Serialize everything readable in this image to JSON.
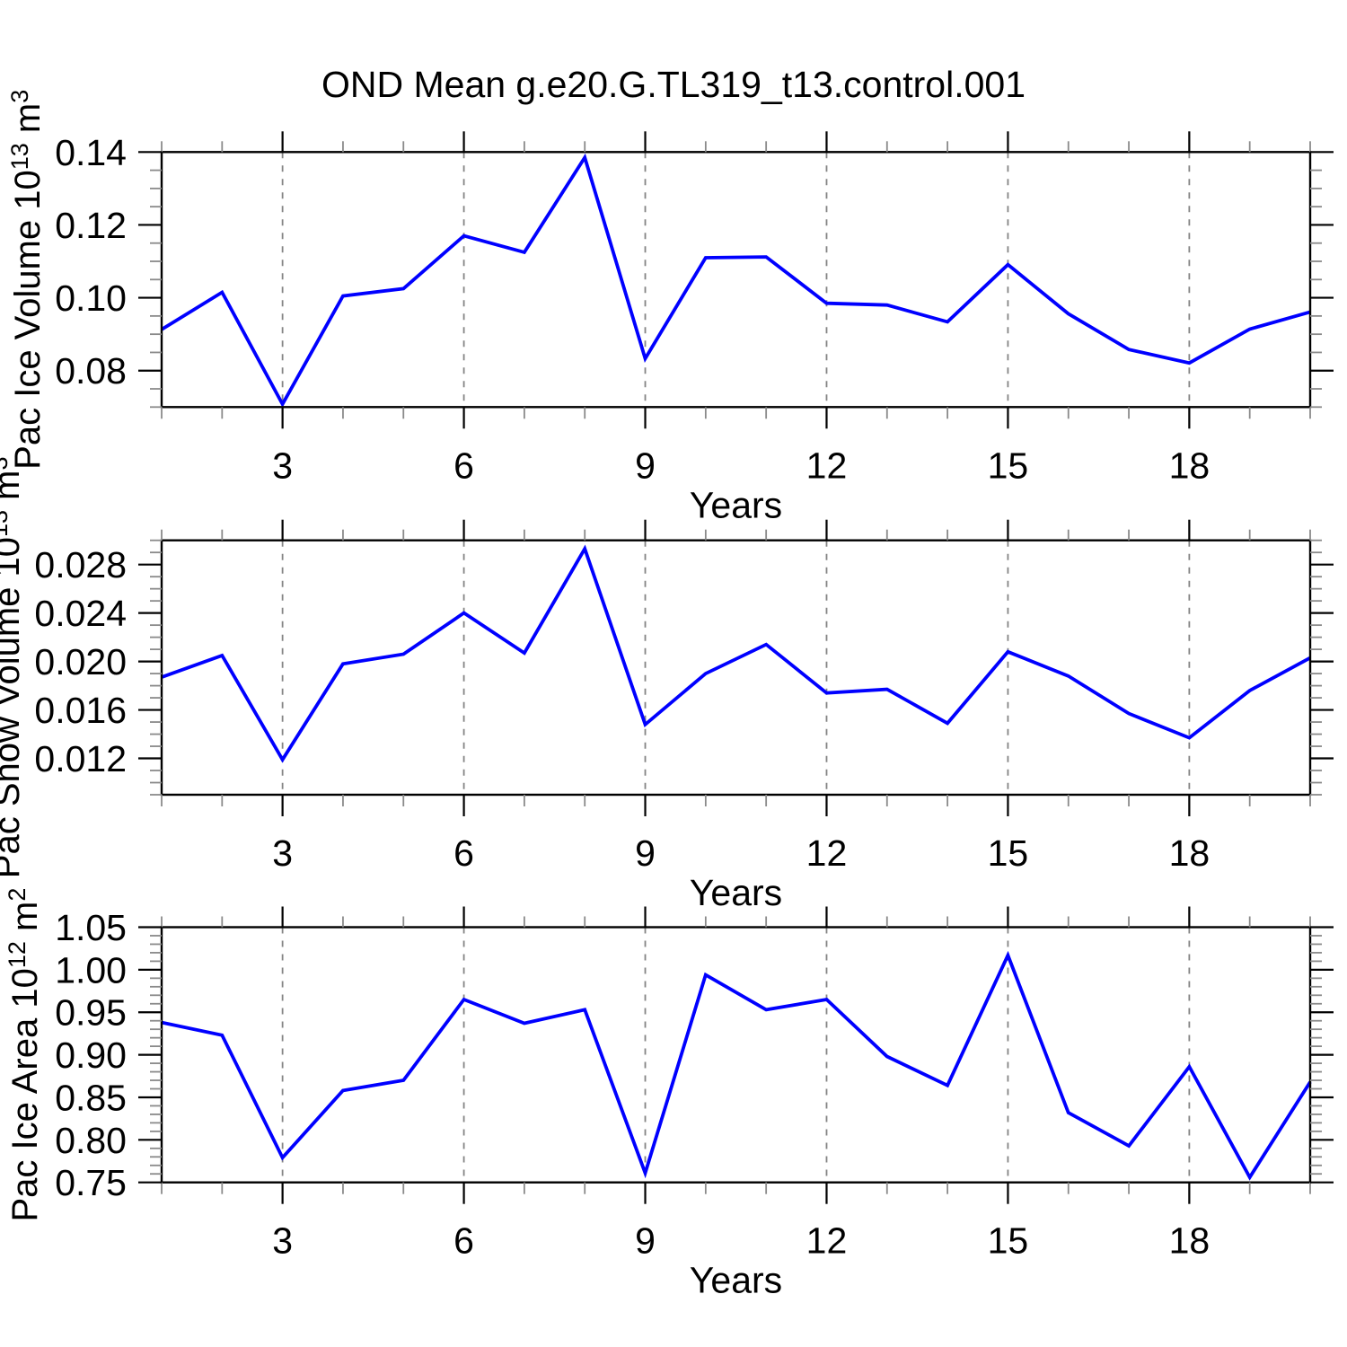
{
  "title": "OND Mean g.e20.G.TL319_t13.control.001",
  "style": {
    "line_color": "#0000ff",
    "frame_color": "#000000",
    "major_tick_color": "#000000",
    "minor_tick_color": "#8a8a8a",
    "grid_color": "#848484",
    "background": "#ffffff"
  },
  "chart_data": [
    {
      "id": "pac-ice-volume",
      "type": "line",
      "ylabel": "Pac Ice Volume 10^13 m^3",
      "ylabel_parts": [
        {
          "t": "Pac Ice Volume 10",
          "sup": false
        },
        {
          "t": "13",
          "sup": true
        },
        {
          "t": " m",
          "sup": false
        },
        {
          "t": "3",
          "sup": true
        }
      ],
      "xlabel": "Years",
      "xlim": [
        1,
        20
      ],
      "xticks": [
        3,
        6,
        9,
        12,
        15,
        18
      ],
      "xtick_labels": [
        "3",
        "6",
        "9",
        "12",
        "15",
        "18"
      ],
      "x_minor_step": 1,
      "ylim": [
        0.07,
        0.14
      ],
      "ytick_values": [
        0.08,
        0.1,
        0.12,
        0.14
      ],
      "ytick_labels": [
        "0.08",
        "0.10",
        "0.12",
        "0.14"
      ],
      "y_minor_step": 0.005,
      "grid_vertical_dashed": true,
      "x": [
        1,
        2,
        3,
        4,
        5,
        6,
        7,
        8,
        9,
        10,
        11,
        12,
        13,
        14,
        15,
        16,
        17,
        18,
        19,
        20
      ],
      "values": [
        0.0913,
        0.1015,
        0.0708,
        0.1005,
        0.1025,
        0.117,
        0.1125,
        0.1385,
        0.0833,
        0.111,
        0.1112,
        0.0985,
        0.098,
        0.0934,
        0.1091,
        0.0956,
        0.0858,
        0.0821,
        0.0914,
        0.0961
      ]
    },
    {
      "id": "pac-snow-volume",
      "type": "line",
      "ylabel": "Pac Snow Volume 10^13 m^3",
      "ylabel_parts": [
        {
          "t": "Pac Snow Volume 10",
          "sup": false
        },
        {
          "t": "13",
          "sup": true
        },
        {
          "t": " m",
          "sup": false
        },
        {
          "t": "3",
          "sup": true
        }
      ],
      "xlabel": "Years",
      "xlim": [
        1,
        20
      ],
      "xticks": [
        3,
        6,
        9,
        12,
        15,
        18
      ],
      "xtick_labels": [
        "3",
        "6",
        "9",
        "12",
        "15",
        "18"
      ],
      "x_minor_step": 1,
      "ylim": [
        0.009,
        0.03
      ],
      "ytick_values": [
        0.012,
        0.016,
        0.02,
        0.024,
        0.028
      ],
      "ytick_labels": [
        "0.012",
        "0.016",
        "0.020",
        "0.024",
        "0.028"
      ],
      "y_minor_step": 0.001,
      "grid_vertical_dashed": true,
      "x": [
        1,
        2,
        3,
        4,
        5,
        6,
        7,
        8,
        9,
        10,
        11,
        12,
        13,
        14,
        15,
        16,
        17,
        18,
        19,
        20
      ],
      "values": [
        0.0187,
        0.0205,
        0.0119,
        0.0198,
        0.0206,
        0.024,
        0.0207,
        0.0293,
        0.0148,
        0.019,
        0.0214,
        0.0174,
        0.0177,
        0.0149,
        0.0208,
        0.0188,
        0.0157,
        0.0137,
        0.0176,
        0.0203
      ]
    },
    {
      "id": "pac-ice-area",
      "type": "line",
      "ylabel": "Pac Ice Area 10^12 m^2",
      "ylabel_parts": [
        {
          "t": "Pac Ice Area 10",
          "sup": false
        },
        {
          "t": "12",
          "sup": true
        },
        {
          "t": " m",
          "sup": false
        },
        {
          "t": "2",
          "sup": true
        }
      ],
      "xlabel": "Years",
      "xlim": [
        1,
        20
      ],
      "xticks": [
        3,
        6,
        9,
        12,
        15,
        18
      ],
      "xtick_labels": [
        "3",
        "6",
        "9",
        "12",
        "15",
        "18"
      ],
      "x_minor_step": 1,
      "ylim": [
        0.75,
        1.05
      ],
      "ytick_values": [
        0.75,
        0.8,
        0.85,
        0.9,
        0.95,
        1.0,
        1.05
      ],
      "ytick_labels": [
        "0.75",
        "0.80",
        "0.85",
        "0.90",
        "0.95",
        "1.00",
        "1.05"
      ],
      "y_minor_step": 0.01,
      "grid_vertical_dashed": true,
      "x": [
        1,
        2,
        3,
        4,
        5,
        6,
        7,
        8,
        9,
        10,
        11,
        12,
        13,
        14,
        15,
        16,
        17,
        18,
        19,
        20
      ],
      "values": [
        0.938,
        0.923,
        0.779,
        0.858,
        0.87,
        0.965,
        0.937,
        0.953,
        0.761,
        0.994,
        0.953,
        0.965,
        0.898,
        0.864,
        1.017,
        0.832,
        0.793,
        0.886,
        0.756,
        0.868
      ]
    }
  ]
}
